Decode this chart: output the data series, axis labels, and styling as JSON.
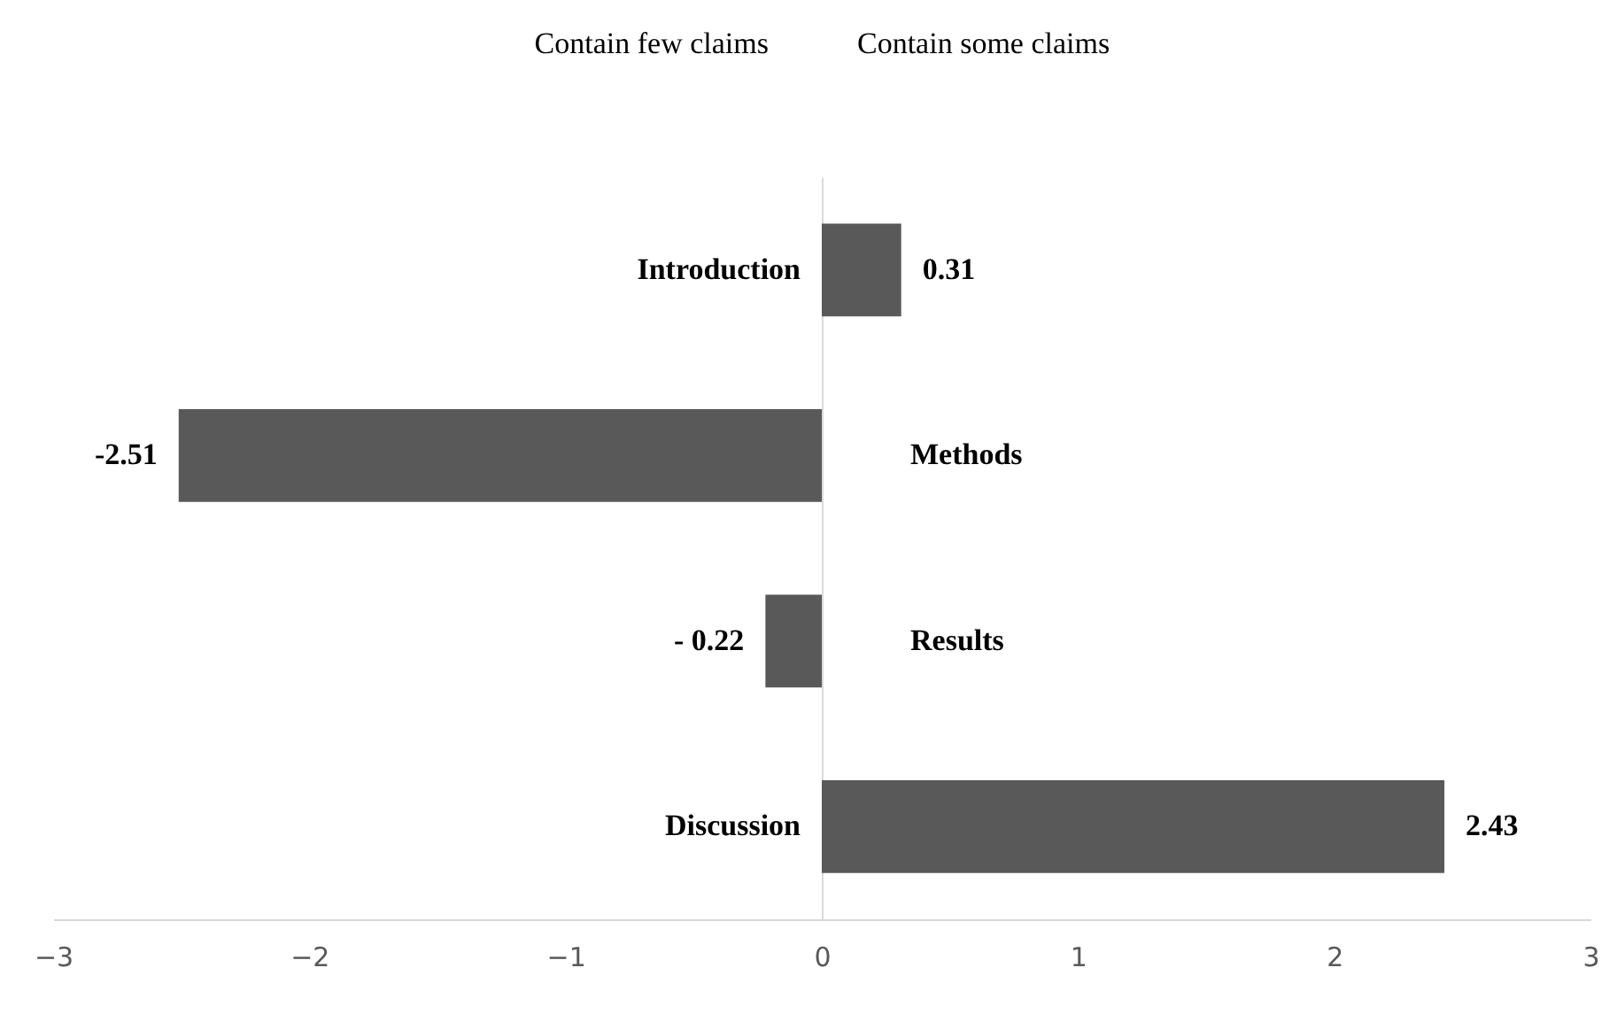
{
  "chart_data": {
    "type": "bar",
    "orientation": "horizontal",
    "categories": [
      "Introduction",
      "Methods",
      "Results",
      "Discussion"
    ],
    "values": [
      0.31,
      -2.51,
      -0.22,
      2.43
    ],
    "value_labels": [
      "0.31",
      "-2.51",
      "- 0.22",
      "2.43"
    ],
    "color": "#595959",
    "xlim": [
      -3,
      3
    ],
    "xticks": [
      -3,
      -2,
      -1,
      0,
      1,
      2,
      3
    ],
    "grid": false,
    "annotations": [
      "Contain few claims",
      "Contain some claims"
    ]
  }
}
